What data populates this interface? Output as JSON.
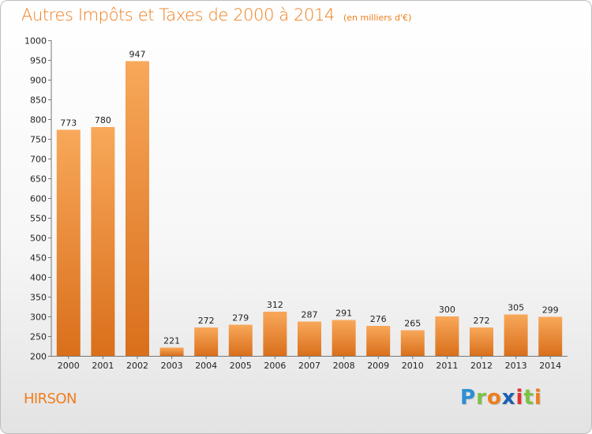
{
  "title": "Autres Impôts et Taxes de 2000 à 2014",
  "subtitle": "(en milliers d'€)",
  "place": "HIRSON",
  "brand": {
    "letters": [
      "P",
      "r",
      "o",
      "x",
      "i",
      "t",
      "i"
    ],
    "colors": [
      "#2b8fd6",
      "#7cc243",
      "#ef7d1c",
      "#1a5fb4",
      "#e2312d",
      "#7cc243",
      "#ef7d1c"
    ]
  },
  "colors": {
    "bar_light": "#f8a85a",
    "bar_dark": "#d96f1b",
    "accent": "#ef7d1c"
  },
  "chart_data": {
    "type": "bar",
    "categories": [
      "2000",
      "2001",
      "2002",
      "2003",
      "2004",
      "2005",
      "2006",
      "2007",
      "2008",
      "2009",
      "2010",
      "2011",
      "2012",
      "2013",
      "2014"
    ],
    "values": [
      773,
      780,
      947,
      221,
      272,
      279,
      312,
      287,
      291,
      276,
      265,
      300,
      272,
      305,
      299
    ],
    "ylim": [
      200,
      1000
    ],
    "ytick_step": 50,
    "grid": false,
    "data_labels": true
  }
}
